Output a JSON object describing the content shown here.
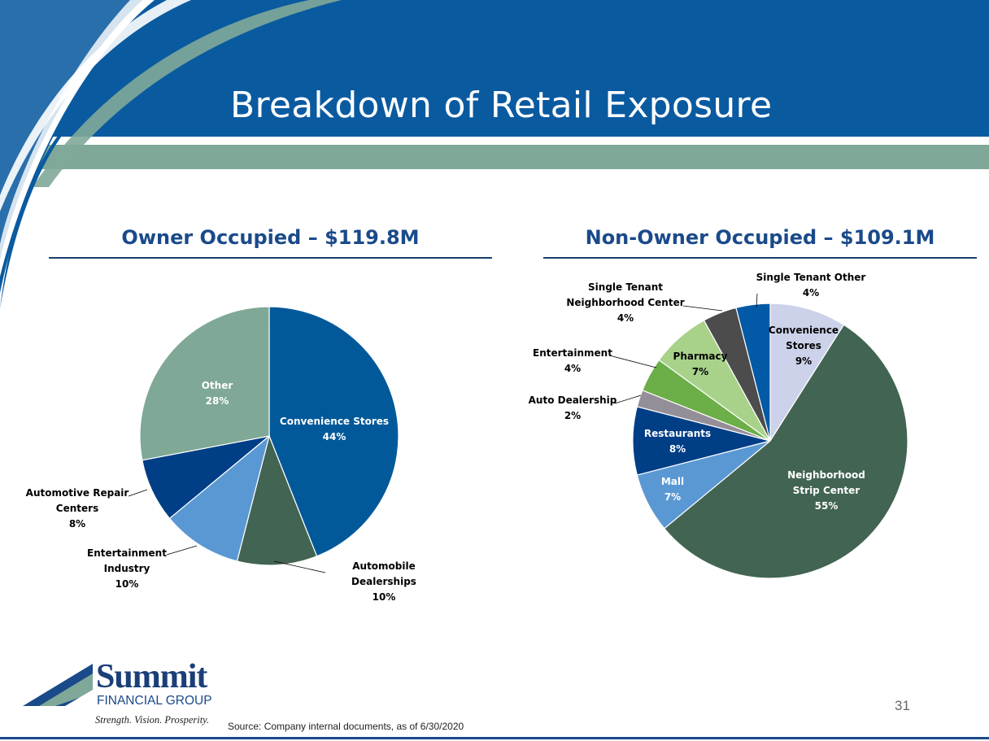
{
  "slide": {
    "title": "Breakdown of Retail Exposure",
    "page_number": "31",
    "source": "Source: Company internal documents, as of 6/30/2020",
    "logo": {
      "name": "Summit",
      "subtitle": "FINANCIAL GROUP",
      "tagline": "Strength. Vision. Prosperity."
    }
  },
  "colors": {
    "header_blue": "#0a5aa0",
    "header_accent_green": "#7fa898",
    "title_blue": "#1a4a8a"
  },
  "chart_data": [
    {
      "type": "pie",
      "title": "Owner Occupied – $119.8M",
      "slices": [
        {
          "label": "Convenience Stores",
          "pct_label": "44%",
          "value": 44,
          "color": "#02599a",
          "label_inside": true
        },
        {
          "label": "Automobile Dealerships",
          "pct_label": "10%",
          "value": 10,
          "color": "#426452",
          "label_inside": false
        },
        {
          "label": "Entertainment Industry",
          "pct_label": "10%",
          "value": 10,
          "color": "#5a98d4",
          "label_inside": false
        },
        {
          "label": "Automotive Repair Centers",
          "pct_label": "8%",
          "value": 8,
          "color": "#003e86",
          "label_inside": false
        },
        {
          "label": "Other",
          "pct_label": "28%",
          "value": 28,
          "color": "#7fa896",
          "label_inside": true
        }
      ]
    },
    {
      "type": "pie",
      "title": "Non-Owner Occupied – $109.1M",
      "slices": [
        {
          "label": "Convenience Stores",
          "pct_label": "9%",
          "value": 9,
          "color": "#ccd2ea",
          "label_inside": true
        },
        {
          "label": "Neighborhood Strip Center",
          "pct_label": "55%",
          "value": 55,
          "color": "#426452",
          "label_inside": true
        },
        {
          "label": "Mall",
          "pct_label": "7%",
          "value": 7,
          "color": "#5a98d4",
          "label_inside": true
        },
        {
          "label": "Restaurants",
          "pct_label": "8%",
          "value": 8,
          "color": "#003e86",
          "label_inside": true
        },
        {
          "label": "Auto Dealership",
          "pct_label": "2%",
          "value": 2,
          "color": "#938e98",
          "label_inside": false
        },
        {
          "label": "Entertainment",
          "pct_label": "4%",
          "value": 4,
          "color": "#6cae48",
          "label_inside": false
        },
        {
          "label": "Pharmacy",
          "pct_label": "7%",
          "value": 7,
          "color": "#a8d18a",
          "label_inside": true
        },
        {
          "label": "Single Tenant Neighborhood Center",
          "pct_label": "4%",
          "value": 4,
          "color": "#4c4c4c",
          "label_inside": false
        },
        {
          "label": "Single Tenant Other",
          "pct_label": "4%",
          "value": 4,
          "color": "#025aa6",
          "label_inside": false
        }
      ]
    }
  ]
}
